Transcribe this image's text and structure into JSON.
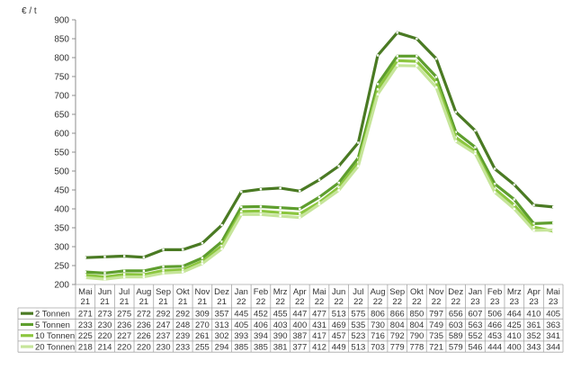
{
  "chart_data": {
    "type": "line",
    "title": "",
    "ylabel": "€ / t",
    "xlabel": "",
    "ylim": [
      200,
      900
    ],
    "yticks": [
      200,
      250,
      300,
      350,
      400,
      450,
      500,
      550,
      600,
      650,
      700,
      750,
      800,
      850,
      900
    ],
    "grid": false,
    "legend": "data-table-left",
    "categories": [
      {
        "month": "Mai",
        "year": "21"
      },
      {
        "month": "Jun",
        "year": "21"
      },
      {
        "month": "Jul",
        "year": "21"
      },
      {
        "month": "Aug",
        "year": "21"
      },
      {
        "month": "Sep",
        "year": "21"
      },
      {
        "month": "Okt",
        "year": "21"
      },
      {
        "month": "Nov",
        "year": "21"
      },
      {
        "month": "Dez",
        "year": "21"
      },
      {
        "month": "Jan",
        "year": "22"
      },
      {
        "month": "Feb",
        "year": "22"
      },
      {
        "month": "Mrz",
        "year": "22"
      },
      {
        "month": "Apr",
        "year": "22"
      },
      {
        "month": "Mai",
        "year": "22"
      },
      {
        "month": "Jun",
        "year": "22"
      },
      {
        "month": "Jul",
        "year": "22"
      },
      {
        "month": "Aug",
        "year": "22"
      },
      {
        "month": "Sep",
        "year": "22"
      },
      {
        "month": "Okt",
        "year": "22"
      },
      {
        "month": "Nov",
        "year": "22"
      },
      {
        "month": "Dez",
        "year": "22"
      },
      {
        "month": "Jan",
        "year": "23"
      },
      {
        "month": "Feb",
        "year": "23"
      },
      {
        "month": "Mrz",
        "year": "23"
      },
      {
        "month": "Apr",
        "year": "23"
      },
      {
        "month": "Mai",
        "year": "23"
      }
    ],
    "series": [
      {
        "name": "2 Tonnen",
        "color": "#4a7a23",
        "values": [
          271,
          273,
          275,
          272,
          292,
          292,
          309,
          357,
          445,
          452,
          455,
          447,
          477,
          513,
          575,
          806,
          866,
          850,
          797,
          656,
          607,
          506,
          464,
          410,
          405
        ]
      },
      {
        "name": "5 Tonnen",
        "color": "#5e9e2e",
        "values": [
          233,
          230,
          236,
          236,
          247,
          248,
          270,
          313,
          405,
          406,
          403,
          400,
          431,
          469,
          535,
          730,
          804,
          804,
          749,
          603,
          563,
          466,
          425,
          361,
          363
        ]
      },
      {
        "name": "10 Tonnen",
        "color": "#8cc63f",
        "values": [
          225,
          220,
          227,
          226,
          237,
          239,
          261,
          302,
          393,
          394,
          390,
          387,
          417,
          457,
          523,
          716,
          792,
          790,
          735,
          589,
          552,
          453,
          410,
          352,
          341
        ]
      },
      {
        "name": "20 Tonnen",
        "color": "#c6e59a",
        "values": [
          218,
          214,
          220,
          220,
          230,
          233,
          255,
          294,
          385,
          385,
          381,
          377,
          412,
          449,
          513,
          703,
          779,
          778,
          721,
          579,
          546,
          444,
          400,
          343,
          344
        ]
      }
    ]
  }
}
